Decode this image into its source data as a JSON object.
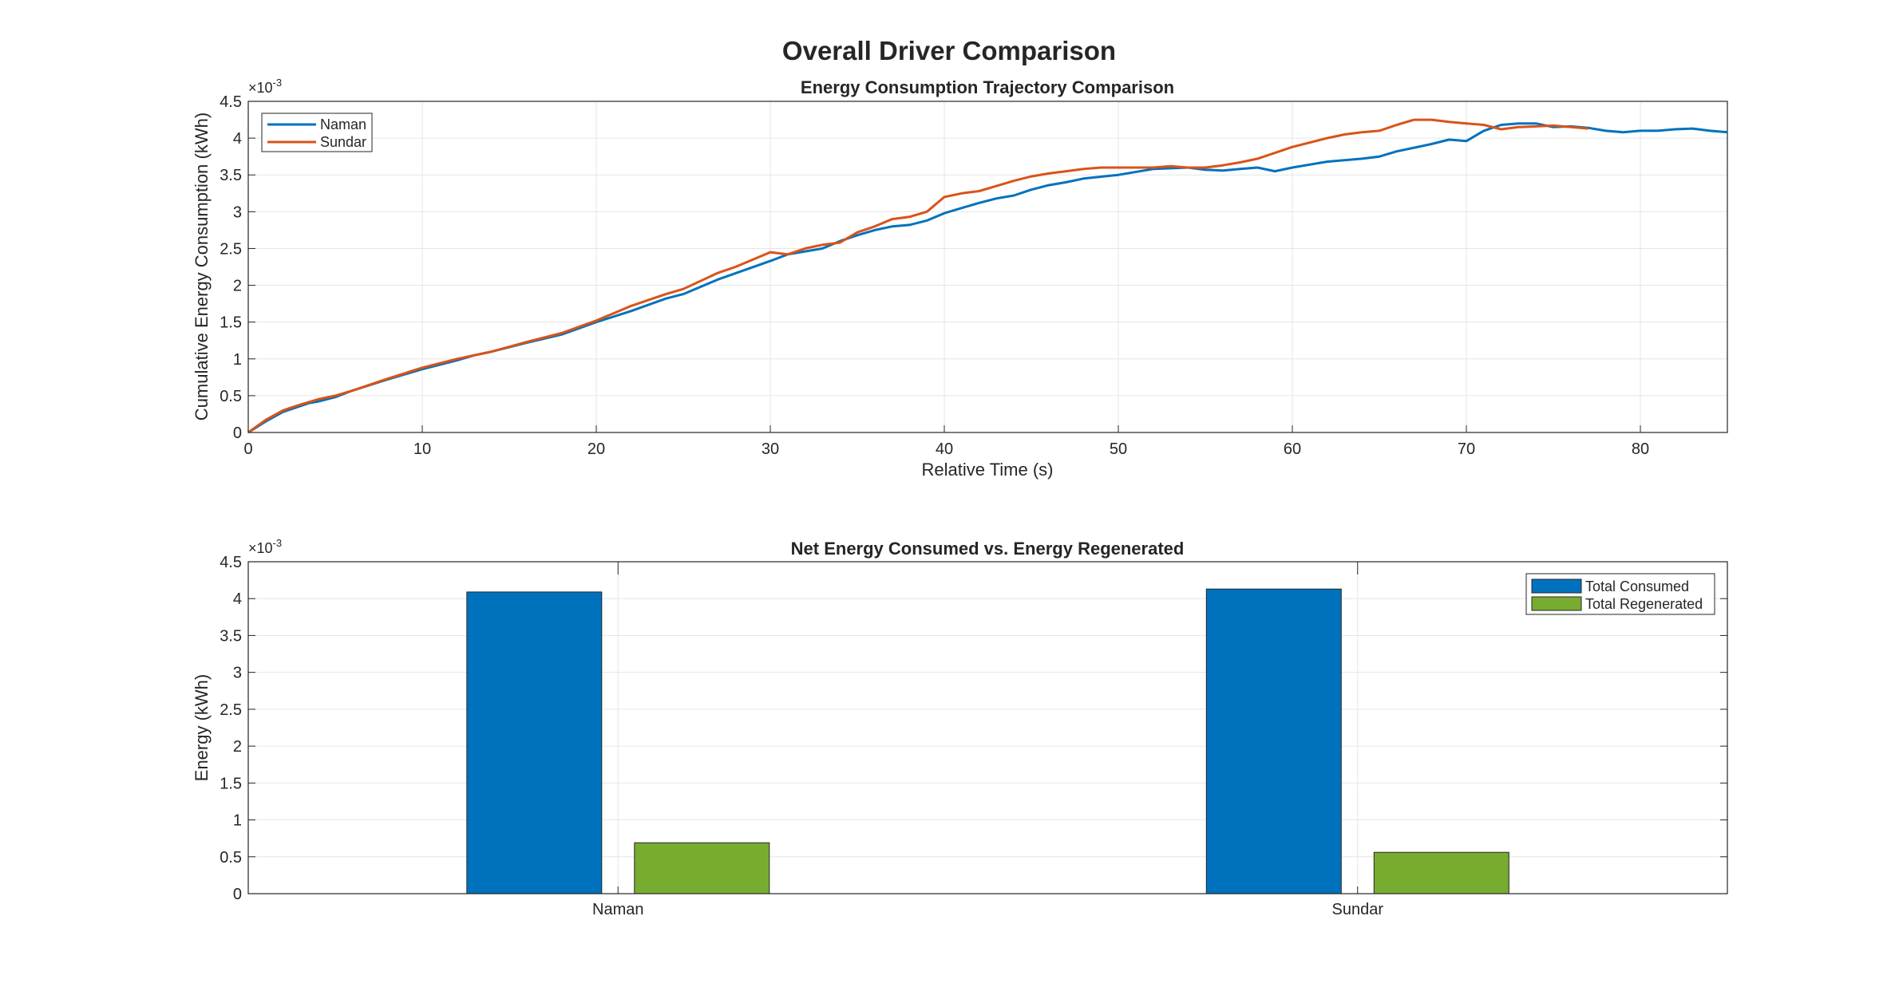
{
  "figure": {
    "title": "Overall Driver Comparison"
  },
  "chart_data": [
    {
      "type": "line",
      "title": "Energy Consumption Trajectory Comparison",
      "xlabel": "Relative Time (s)",
      "ylabel": "Cumulative Energy Consumption (kWh)",
      "y_multiplier": "×10",
      "y_multiplier_exp": "-3",
      "xlim": [
        0,
        85
      ],
      "ylim": [
        0,
        4.5
      ],
      "xticks": [
        0,
        10,
        20,
        30,
        40,
        50,
        60,
        70,
        80
      ],
      "yticks": [
        0,
        0.5,
        1,
        1.5,
        2,
        2.5,
        3,
        3.5,
        4,
        4.5
      ],
      "ytick_labels": [
        "0",
        "0.5",
        "1",
        "1.5",
        "2",
        "2.5",
        "3",
        "3.5",
        "4",
        "4.5"
      ],
      "grid": true,
      "legend_position": "top-left",
      "series": [
        {
          "name": "Naman",
          "color": "#0072BD",
          "x": [
            0,
            1,
            2,
            3,
            3.5,
            4,
            5,
            6,
            8,
            10,
            12,
            13,
            14,
            16,
            18,
            20,
            22,
            24,
            25,
            27,
            30,
            31,
            32,
            33,
            34,
            35,
            36,
            37,
            38,
            39,
            40,
            41,
            42,
            43,
            44,
            45,
            46,
            47,
            48,
            50,
            52,
            54,
            55,
            56,
            57,
            58,
            59,
            60,
            62,
            63,
            64,
            65,
            66,
            68,
            69,
            70,
            71,
            72,
            73,
            74,
            75,
            76,
            77,
            78,
            79,
            80,
            81,
            82,
            83,
            84,
            85
          ],
          "y": [
            0,
            0.15,
            0.28,
            0.36,
            0.4,
            0.42,
            0.48,
            0.57,
            0.72,
            0.86,
            0.98,
            1.05,
            1.1,
            1.22,
            1.33,
            1.5,
            1.65,
            1.82,
            1.88,
            2.08,
            2.33,
            2.42,
            2.46,
            2.5,
            2.6,
            2.68,
            2.75,
            2.8,
            2.82,
            2.88,
            2.98,
            3.05,
            3.12,
            3.18,
            3.22,
            3.3,
            3.36,
            3.4,
            3.45,
            3.5,
            3.58,
            3.6,
            3.57,
            3.56,
            3.58,
            3.6,
            3.55,
            3.6,
            3.68,
            3.7,
            3.72,
            3.75,
            3.82,
            3.92,
            3.98,
            3.96,
            4.1,
            4.18,
            4.2,
            4.2,
            4.15,
            4.16,
            4.14,
            4.1,
            4.08,
            4.1,
            4.1,
            4.12,
            4.13,
            4.1,
            4.08
          ]
        },
        {
          "name": "Sundar",
          "color": "#D95319",
          "x": [
            0,
            1,
            2,
            3,
            4,
            5,
            6,
            8,
            10,
            12,
            14,
            16,
            18,
            20,
            22,
            24,
            25,
            27,
            28,
            30,
            31,
            32,
            33,
            34,
            35,
            36,
            37,
            38,
            39,
            40,
            41,
            42,
            43,
            44,
            45,
            46,
            47,
            48,
            49,
            50,
            51,
            52,
            53,
            54,
            55,
            56,
            57,
            58,
            60,
            62,
            63,
            64,
            65,
            66,
            67,
            68,
            69,
            70,
            71,
            72,
            73,
            74,
            75,
            76,
            77
          ],
          "y": [
            0,
            0.17,
            0.3,
            0.38,
            0.45,
            0.5,
            0.57,
            0.73,
            0.88,
            1.0,
            1.1,
            1.23,
            1.35,
            1.52,
            1.72,
            1.88,
            1.95,
            2.17,
            2.25,
            2.45,
            2.42,
            2.5,
            2.55,
            2.58,
            2.72,
            2.8,
            2.9,
            2.93,
            3.0,
            3.2,
            3.25,
            3.28,
            3.35,
            3.42,
            3.48,
            3.52,
            3.55,
            3.58,
            3.6,
            3.6,
            3.6,
            3.6,
            3.62,
            3.6,
            3.6,
            3.63,
            3.67,
            3.72,
            3.88,
            4.0,
            4.05,
            4.08,
            4.1,
            4.18,
            4.25,
            4.25,
            4.22,
            4.2,
            4.18,
            4.12,
            4.15,
            4.16,
            4.17,
            4.15,
            4.13
          ]
        }
      ]
    },
    {
      "type": "bar",
      "title": "Net Energy Consumed vs. Energy Regenerated",
      "xlabel": "",
      "ylabel": "Energy (kWh)",
      "y_multiplier": "×10",
      "y_multiplier_exp": "-3",
      "categories": [
        "Naman",
        "Sundar"
      ],
      "ylim": [
        0,
        4.5
      ],
      "yticks": [
        0,
        0.5,
        1,
        1.5,
        2,
        2.5,
        3,
        3.5,
        4,
        4.5
      ],
      "ytick_labels": [
        "0",
        "0.5",
        "1",
        "1.5",
        "2",
        "2.5",
        "3",
        "3.5",
        "4",
        "4.5"
      ],
      "grid": true,
      "legend_position": "top-right",
      "series": [
        {
          "name": "Total Consumed",
          "color": "#0072BD",
          "values": [
            4.09,
            4.13
          ]
        },
        {
          "name": "Total Regenerated",
          "color": "#77AC30",
          "values": [
            0.69,
            0.56
          ]
        }
      ]
    }
  ]
}
